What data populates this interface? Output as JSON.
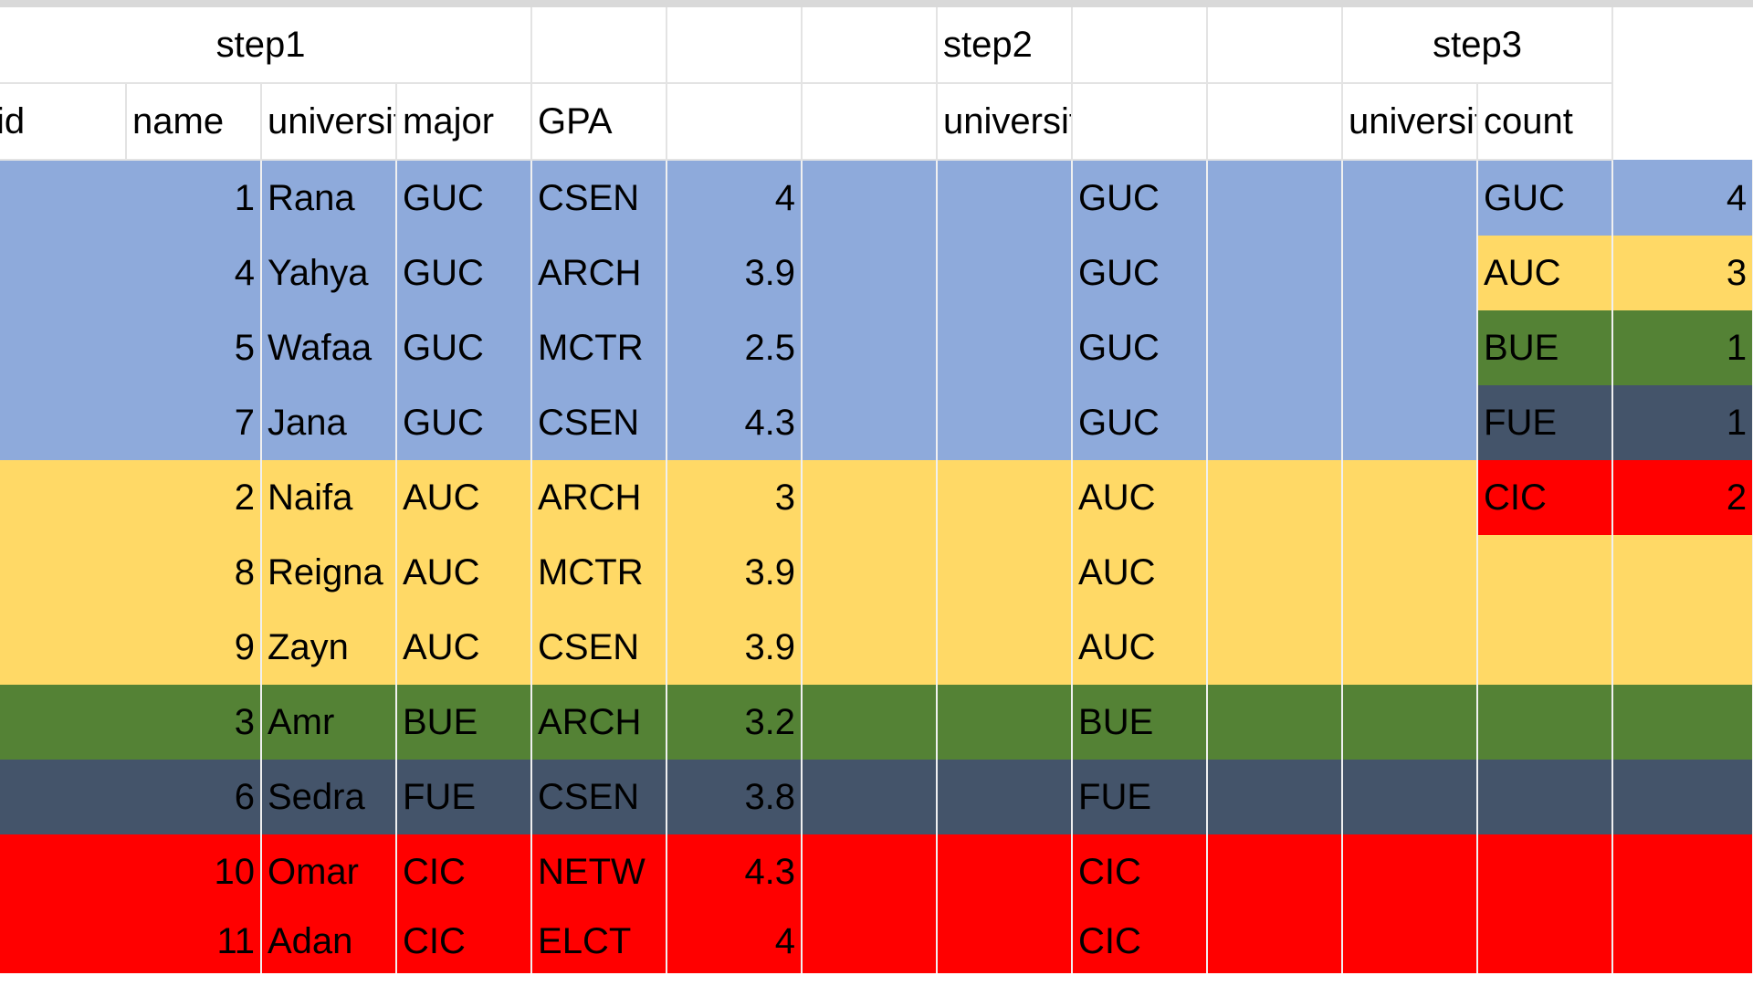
{
  "colors": {
    "GUC": "#8eaadb",
    "AUC": "#ffd966",
    "BUE": "#548235",
    "FUE": "#44546a",
    "CIC": "#ff0000",
    "grid_line": "#e3e3e3"
  },
  "headers": {
    "step1": "step1",
    "step2": "step2",
    "step3": "step3",
    "id": "id",
    "name": "name",
    "university": "university",
    "major": "major",
    "gpa": "GPA",
    "step2_university": "university",
    "step3_university": "university",
    "step3_count": "count"
  },
  "students": [
    {
      "id": "1",
      "name": "Rana",
      "university": "GUC",
      "major": "CSEN",
      "gpa": "4"
    },
    {
      "id": "4",
      "name": "Yahya",
      "university": "GUC",
      "major": "ARCH",
      "gpa": "3.9"
    },
    {
      "id": "5",
      "name": "Wafaa",
      "university": "GUC",
      "major": "MCTR",
      "gpa": "2.5"
    },
    {
      "id": "7",
      "name": "Jana",
      "university": "GUC",
      "major": "CSEN",
      "gpa": "4.3"
    },
    {
      "id": "2",
      "name": "Naifa",
      "university": "AUC",
      "major": "ARCH",
      "gpa": "3"
    },
    {
      "id": "8",
      "name": "Reigna",
      "university": "AUC",
      "major": "MCTR",
      "gpa": "3.9"
    },
    {
      "id": "9",
      "name": "Zayn",
      "university": "AUC",
      "major": "CSEN",
      "gpa": "3.9"
    },
    {
      "id": "3",
      "name": "Amr",
      "university": "BUE",
      "major": "ARCH",
      "gpa": "3.2"
    },
    {
      "id": "6",
      "name": "Sedra",
      "university": "FUE",
      "major": "CSEN",
      "gpa": "3.8"
    },
    {
      "id": "10",
      "name": "Omar",
      "university": "CIC",
      "major": "NETW",
      "gpa": "4.3"
    },
    {
      "id": "11",
      "name": "Adan",
      "university": "CIC",
      "major": "ELCT",
      "gpa": "4"
    }
  ],
  "step2_universities": [
    "GUC",
    "GUC",
    "GUC",
    "GUC",
    "AUC",
    "AUC",
    "AUC",
    "BUE",
    "FUE",
    "CIC",
    "CIC"
  ],
  "step3_counts": [
    {
      "university": "GUC",
      "count": "4"
    },
    {
      "university": "AUC",
      "count": "3"
    },
    {
      "university": "BUE",
      "count": "1"
    },
    {
      "university": "FUE",
      "count": "1"
    },
    {
      "university": "CIC",
      "count": "2"
    }
  ]
}
